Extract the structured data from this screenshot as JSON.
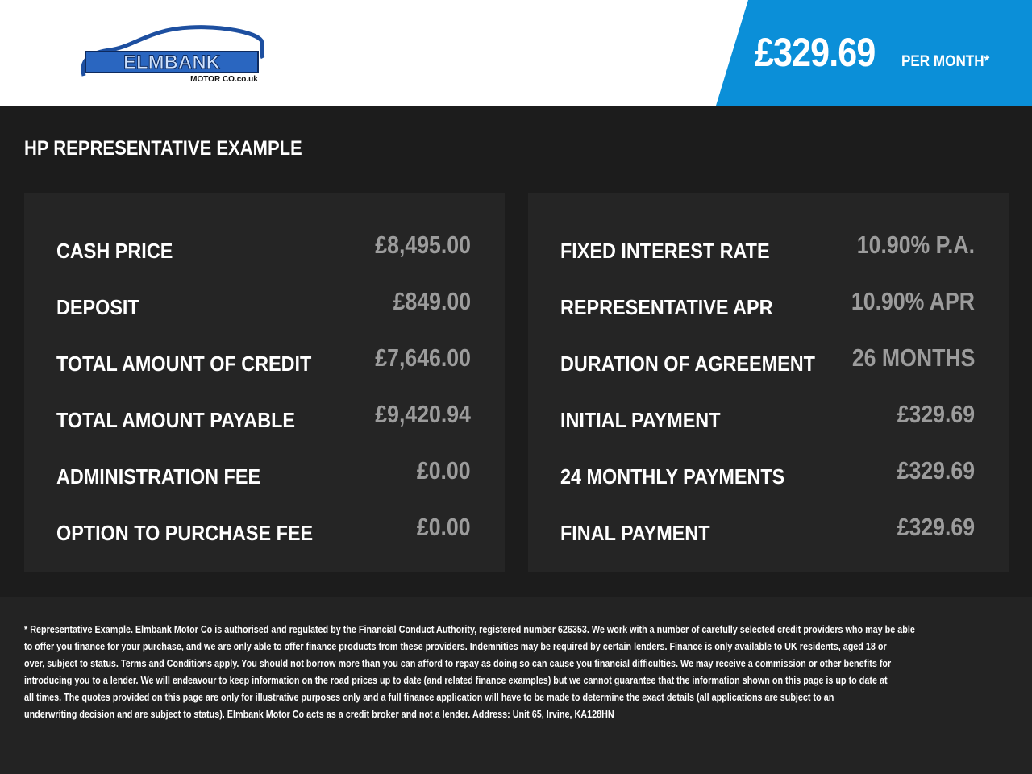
{
  "brand": {
    "name": "ELMBANK",
    "sub": "MOTOR CO",
    "domain": ".co.uk",
    "color": "#1d4fa0"
  },
  "header": {
    "monthly_price": "£329.69",
    "per_month": "PER MONTH*",
    "accent": "#0b8fd8"
  },
  "title": "HP REPRESENTATIVE EXAMPLE",
  "left": [
    {
      "label": "CASH PRICE",
      "value": "£8,495.00"
    },
    {
      "label": "DEPOSIT",
      "value": "£849.00"
    },
    {
      "label": "TOTAL AMOUNT OF CREDIT",
      "value": "£7,646.00"
    },
    {
      "label": "TOTAL AMOUNT PAYABLE",
      "value": "£9,420.94"
    },
    {
      "label": "ADMINISTRATION FEE",
      "value": "£0.00"
    },
    {
      "label": "OPTION TO PURCHASE FEE",
      "value": "£0.00"
    }
  ],
  "right": [
    {
      "label": "FIXED INTEREST RATE",
      "value": "10.90% P.A."
    },
    {
      "label": "REPRESENTATIVE APR",
      "value": "10.90% APR"
    },
    {
      "label": "DURATION OF AGREEMENT",
      "value": "26 MONTHS"
    },
    {
      "label": "INITIAL PAYMENT",
      "value": "£329.69"
    },
    {
      "label": "24 MONTHLY PAYMENTS",
      "value": "£329.69"
    },
    {
      "label": "FINAL PAYMENT",
      "value": "£329.69"
    }
  ],
  "disclaimer": [
    "* Representative Example. Elmbank Motor Co is authorised and regulated by the Financial Conduct Authority, registered number 626353. We work with a number of carefully selected credit providers who may be able",
    "to offer you finance for your purchase, and we are only able to offer finance products from these providers. Indemnities may be required by certain lenders. Finance is only available to UK residents, aged 18 or",
    "over, subject to status. Terms and Conditions apply. You should not borrow more than you can afford to repay as doing so can cause you financial difficulties. We may receive a commission or other benefits for",
    "introducing you to a lender. We will endeavour to keep information on the road prices up to date (and related finance examples) but we cannot guarantee that the information shown on this page is up to date at",
    "all times. The quotes provided on this page are only for illustrative purposes only and a full finance application will have to be made to determine the exact details (all applications are subject to an",
    "underwriting decision and are subject to status). Elmbank Motor Co acts as a credit broker and not a lender. Address: Unit 65, Irvine, KA128HN"
  ]
}
